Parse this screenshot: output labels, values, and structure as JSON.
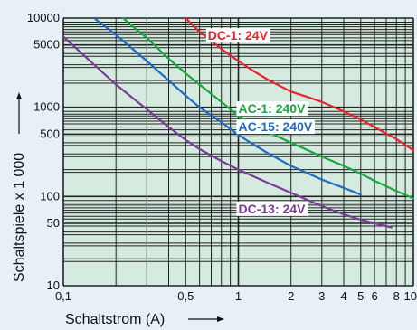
{
  "chart_data": {
    "type": "line",
    "title": "",
    "xlabel": "Schaltstrom (A)",
    "ylabel": "Schaltspiele x 1 000",
    "x_scale": "log",
    "y_scale": "log",
    "xlim": [
      0.1,
      10
    ],
    "ylim": [
      10,
      10000
    ],
    "grid": true,
    "x_ticks": [
      {
        "value": 0.1,
        "label": "0,1"
      },
      {
        "value": 0.5,
        "label": "0,5"
      },
      {
        "value": 1,
        "label": "1"
      },
      {
        "value": 2,
        "label": "2"
      },
      {
        "value": 3,
        "label": "3"
      },
      {
        "value": 4,
        "label": "4"
      },
      {
        "value": 5,
        "label": "5"
      },
      {
        "value": 6,
        "label": "6"
      },
      {
        "value": 8,
        "label": "8"
      },
      {
        "value": 10,
        "label": "10"
      }
    ],
    "y_ticks": [
      {
        "value": 10,
        "label": "10"
      },
      {
        "value": 50,
        "label": "50"
      },
      {
        "value": 100,
        "label": "100"
      },
      {
        "value": 500,
        "label": "500"
      },
      {
        "value": 1000,
        "label": "1000"
      },
      {
        "value": 5000,
        "label": "5000"
      },
      {
        "value": 10000,
        "label": "10000"
      }
    ],
    "series": [
      {
        "name": "DC-1: 24V",
        "color": "#e8242c",
        "label_at": [
          0.67,
          5700
        ],
        "x": [
          0.5,
          0.6,
          0.7,
          0.8,
          1,
          1.2,
          1.5,
          2,
          2.5,
          3,
          4,
          5,
          6,
          8,
          10
        ],
        "y": [
          10000,
          7000,
          5600,
          4500,
          3300,
          2600,
          2000,
          1500,
          1300,
          1150,
          900,
          730,
          600,
          440,
          330
        ]
      },
      {
        "name": "AC-1: 240V",
        "color": "#1aa63e",
        "label_at": [
          1.0,
          860
        ],
        "x": [
          0.22,
          0.25,
          0.3,
          0.4,
          0.5,
          0.6,
          0.8,
          1,
          1.2,
          1.5,
          2,
          2.5,
          3,
          4,
          5,
          6,
          8,
          10
        ],
        "y": [
          10000,
          8000,
          6000,
          3500,
          2400,
          1800,
          1150,
          800,
          650,
          520,
          400,
          330,
          280,
          220,
          180,
          150,
          115,
          95
        ]
      },
      {
        "name": "AC-15: 240V",
        "color": "#1f6bc4",
        "label_at": [
          1.0,
          540
        ],
        "x": [
          0.15,
          0.2,
          0.3,
          0.4,
          0.5,
          0.6,
          0.8,
          1,
          1.2,
          1.5,
          2,
          3,
          4,
          5
        ],
        "y": [
          10000,
          6500,
          3300,
          2000,
          1350,
          1000,
          680,
          490,
          390,
          300,
          220,
          155,
          125,
          105
        ]
      },
      {
        "name": "DC-13: 24V",
        "color": "#7b3b98",
        "label_at": [
          1.0,
          65
        ],
        "x": [
          0.1,
          0.15,
          0.2,
          0.3,
          0.4,
          0.5,
          0.6,
          0.8,
          1,
          1.5,
          2,
          3,
          4,
          5,
          6,
          7.5
        ],
        "y": [
          6200,
          3000,
          1800,
          950,
          600,
          430,
          340,
          250,
          200,
          140,
          110,
          78,
          63,
          55,
          50,
          45
        ]
      }
    ]
  }
}
